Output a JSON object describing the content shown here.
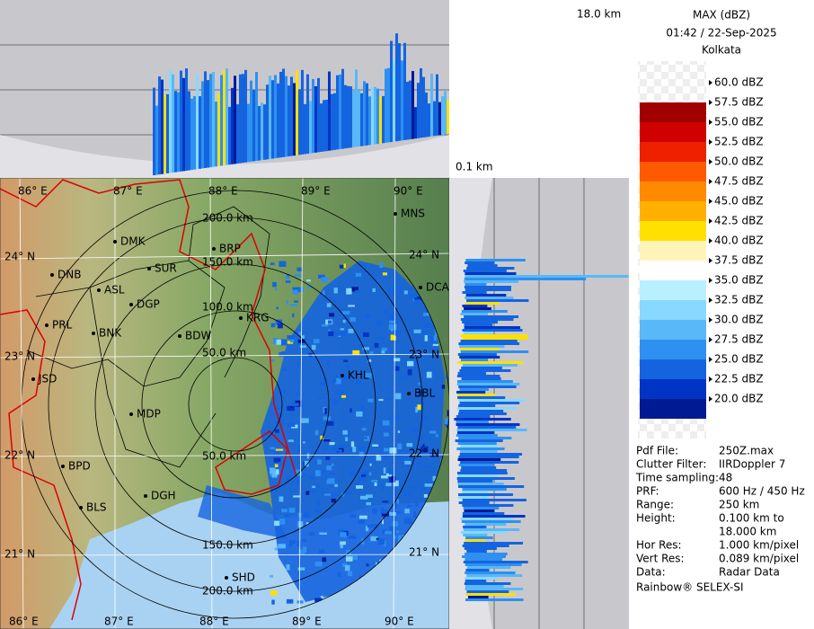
{
  "header": {
    "product": "MAX (dBZ)",
    "time": "01:42 / 22-Sep-2025",
    "site": "Kolkata"
  },
  "cross_sections": {
    "top_height": "18.0 km",
    "bottom_height": "0.1 km"
  },
  "scale": {
    "ticks": [
      "60.0 dBZ",
      "57.5 dBZ",
      "55.0 dBZ",
      "52.5 dBZ",
      "50.0 dBZ",
      "47.5 dBZ",
      "45.0 dBZ",
      "42.5 dBZ",
      "40.0 dBZ",
      "37.5 dBZ",
      "35.0 dBZ",
      "32.5 dBZ",
      "30.0 dBZ",
      "27.5 dBZ",
      "25.0 dBZ",
      "22.5 dBZ",
      "20.0 dBZ"
    ],
    "colors": [
      "#a00000",
      "#d00000",
      "#ee2000",
      "#ff5a00",
      "#ff8a00",
      "#ffb000",
      "#ffe000",
      "#fff4b8",
      "#ffffff",
      "#b8f0ff",
      "#88d8ff",
      "#58b8f8",
      "#2e90f0",
      "#1464e0",
      "#0034c4",
      "#001a94"
    ]
  },
  "info": [
    [
      "Pdf File:",
      "250Z.max"
    ],
    [
      "Clutter Filter:",
      "IIRDoppler 7"
    ],
    [
      "Time sampling:",
      "48"
    ],
    [
      "PRF:",
      "600 Hz / 450 Hz"
    ],
    [
      "Range:",
      "250 km"
    ],
    [
      "Height:",
      "0.100 km to",
      "18.000 km"
    ],
    [
      "Hor Res:",
      "1.000 km/pixel"
    ],
    [
      "Vert Res:",
      "0.089 km/pixel"
    ],
    [
      "Data:",
      "Radar Data"
    ]
  ],
  "footer": "Rainbow® SELEX-SI",
  "map": {
    "lon_top": [
      "86° E",
      "87° E",
      "88° E",
      "89° E",
      "90° E"
    ],
    "lon_bottom": [
      "86° E",
      "87° E",
      "88° E",
      "89° E",
      "90° E"
    ],
    "lat_left": [
      "24° N",
      "23° N",
      "22° N",
      "21° N"
    ],
    "lat_right": [
      "24° N",
      "23° N",
      "22° N",
      "21° N"
    ],
    "rings_top": [
      "50.0 km",
      "100.0 km",
      "150.0 km",
      "200.0 km"
    ],
    "rings_bottom": [
      "50.0 km",
      "150.0 km",
      "200.0 km"
    ],
    "cities": [
      "MNS",
      "DMK",
      "BRP",
      "DNB",
      "SUR",
      "ASL",
      "DGP",
      "DCA",
      "PRL",
      "KRG",
      "BNK",
      "BDW",
      "KHL",
      "JSD",
      "BBL",
      "MDP",
      "BPD",
      "DGH",
      "BLS",
      "SHD"
    ]
  }
}
